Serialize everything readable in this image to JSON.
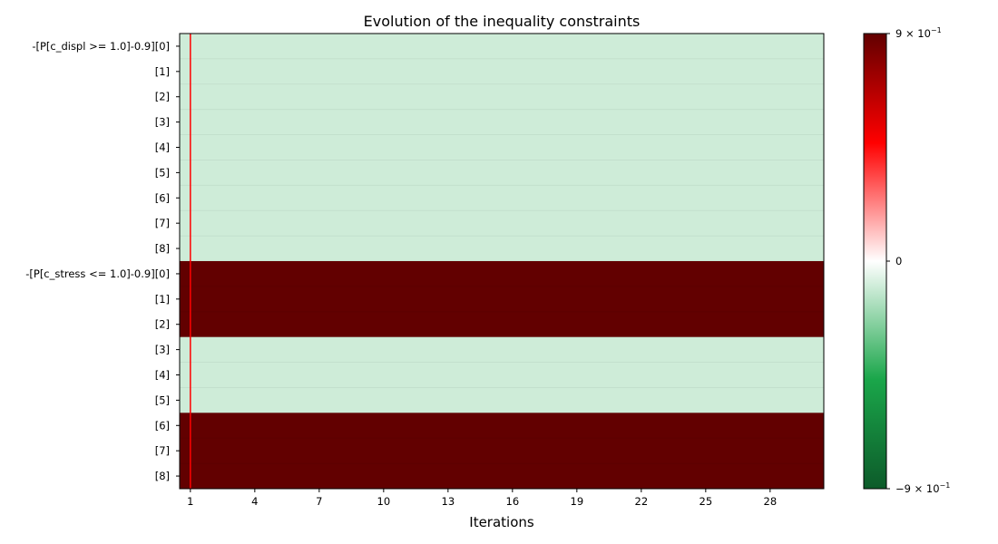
{
  "chart_data": {
    "type": "heatmap",
    "title": "Evolution of the inequality constraints",
    "xlabel": "Iterations",
    "ylabel": "",
    "x_range": [
      1,
      30
    ],
    "x_ticks": [
      1,
      4,
      7,
      10,
      13,
      16,
      19,
      22,
      25,
      28
    ],
    "rows": [
      "-[P[c_displ >= 1.0]-0.9][0]",
      "[1]",
      "[2]",
      "[3]",
      "[4]",
      "[5]",
      "[6]",
      "[7]",
      "[8]",
      "-[P[c_stress <= 1.0]-0.9][0]",
      "[1]",
      "[2]",
      "[3]",
      "[4]",
      "[5]",
      "[6]",
      "[7]",
      "[8]"
    ],
    "row_values": [
      -0.1,
      -0.1,
      -0.1,
      -0.1,
      -0.1,
      -0.1,
      -0.1,
      -0.1,
      -0.1,
      0.9,
      0.9,
      0.9,
      -0.1,
      -0.1,
      -0.1,
      0.9,
      0.9,
      0.9
    ],
    "value_range": [
      -0.9,
      0.9
    ],
    "colorbar": {
      "labels": [
        {
          "value": 0.9,
          "base": "9 × 10",
          "exp": "−1"
        },
        {
          "value": 0,
          "base": "0",
          "exp": ""
        },
        {
          "value": -0.9,
          "base": "−9 × 10",
          "exp": "−1"
        }
      ],
      "colors": {
        "low": "#0d5b2a",
        "mid_low": "#1aa64a",
        "zero": "#ffffff",
        "mid_high": "#ff0000",
        "high": "#620000"
      }
    },
    "marker_line": {
      "iteration": 1,
      "color": "#ff0000"
    },
    "grid": false
  }
}
